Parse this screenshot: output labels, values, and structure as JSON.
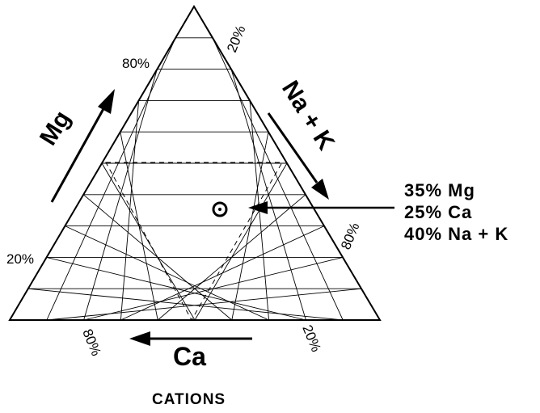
{
  "title": "CATIONS",
  "axes": {
    "mg": {
      "label": "Mg",
      "tick_high": "80%",
      "tick_low": "20%"
    },
    "na_k": {
      "label": "Na + K",
      "tick_low": "20%",
      "tick_high": "80%"
    },
    "ca": {
      "label": "Ca",
      "tick_high": "80%",
      "tick_low": "20%"
    }
  },
  "sample": {
    "marker": "circle-dot-icon",
    "lines": [
      "35% Mg",
      "25% Ca",
      "40% Na + K"
    ],
    "mg_pct": 35,
    "ca_pct": 25,
    "na_k_pct": 40
  },
  "chart_data": {
    "type": "ternary",
    "title": "CATIONS",
    "components": [
      "Mg",
      "Na + K",
      "Ca"
    ],
    "grid_step_pct": 10,
    "points": [
      {
        "Mg": 35,
        "Ca": 25,
        "Na + K": 40
      }
    ],
    "dashed_region": {
      "Mg_max": 80,
      "Ca_max": 80,
      "Na + K_max": 80,
      "Mg_min": 20
    }
  }
}
